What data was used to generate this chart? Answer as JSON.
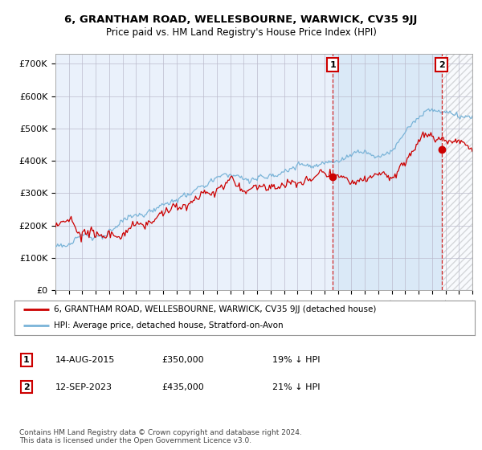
{
  "title": "6, GRANTHAM ROAD, WELLESBOURNE, WARWICK, CV35 9JJ",
  "subtitle": "Price paid vs. HM Land Registry's House Price Index (HPI)",
  "ylim": [
    0,
    730000
  ],
  "yticks": [
    0,
    100000,
    200000,
    300000,
    400000,
    500000,
    600000,
    700000
  ],
  "ytick_labels": [
    "£0",
    "£100K",
    "£200K",
    "£300K",
    "£400K",
    "£500K",
    "£600K",
    "£700K"
  ],
  "x_start_year": 1995,
  "x_end_year": 2026,
  "hpi_color": "#7ab4d8",
  "price_color": "#cc0000",
  "marker1_year": 2015.62,
  "marker1_price": 350000,
  "marker2_year": 2023.71,
  "marker2_price": 435000,
  "legend_line1": "6, GRANTHAM ROAD, WELLESBOURNE, WARWICK, CV35 9JJ (detached house)",
  "legend_line2": "HPI: Average price, detached house, Stratford-on-Avon",
  "ann1_date": "14-AUG-2015",
  "ann1_price": "£350,000",
  "ann1_hpi": "19% ↓ HPI",
  "ann2_date": "12-SEP-2023",
  "ann2_price": "£435,000",
  "ann2_hpi": "21% ↓ HPI",
  "footer": "Contains HM Land Registry data © Crown copyright and database right 2024.\nThis data is licensed under the Open Government Licence v3.0.",
  "bg_color": "#eaf1fb",
  "plot_bg": "#ffffff",
  "shade_between_color": "#d0e4f5",
  "hatch_color": "#d0d0d0"
}
